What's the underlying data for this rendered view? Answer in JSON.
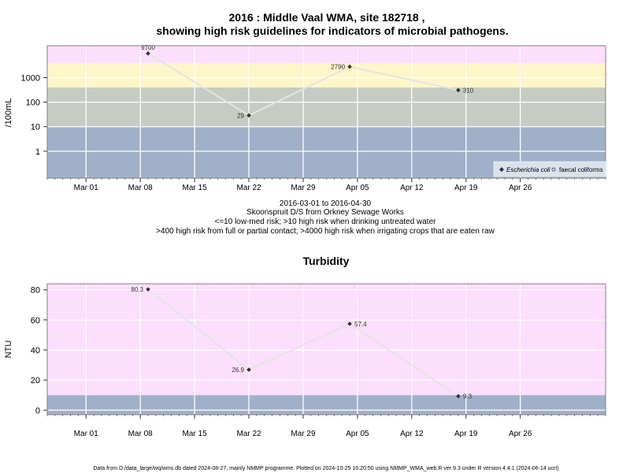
{
  "chart_data": [
    {
      "type": "line",
      "title_line1": "2016 : Middle Vaal WMA, site 182718 ,",
      "title_line2": "showing high risk guidelines for indicators of microbial pathogens.",
      "ylabel": "/100mL",
      "yscale": "log",
      "ylim": [
        0.08,
        20000
      ],
      "xlim": [
        "2016-02-25",
        "2016-05-07"
      ],
      "y_ticks": [
        1,
        10,
        100,
        1000
      ],
      "y_tick_labels": [
        "1",
        "10",
        "100",
        "1000"
      ],
      "x_ticks": [
        "2016-03-01",
        "2016-03-08",
        "2016-03-15",
        "2016-03-22",
        "2016-03-29",
        "2016-04-05",
        "2016-04-12",
        "2016-04-19",
        "2016-04-26"
      ],
      "x_tick_labels": [
        "Mar 01",
        "Mar 08",
        "Mar 15",
        "Mar 22",
        "Mar 29",
        "Apr 05",
        "Apr 12",
        "Apr 19",
        "Apr 26"
      ],
      "grid": true,
      "bands": [
        {
          "from": 0.08,
          "to": 10,
          "color": "#a0b0c8"
        },
        {
          "from": 10,
          "to": 400,
          "color": "#c6cbc4"
        },
        {
          "from": 400,
          "to": 4000,
          "color": "#fdf6c8"
        },
        {
          "from": 4000,
          "to": 20000,
          "color": "#fcdffc"
        }
      ],
      "series": [
        {
          "name": "Escherichia coli",
          "x": [
            "2016-03-09",
            "2016-03-22",
            "2016-04-04",
            "2016-04-18"
          ],
          "y": [
            9700,
            29,
            2790,
            310
          ],
          "labels": [
            "9700",
            "29",
            "2790",
            "310"
          ]
        }
      ],
      "legend": {
        "position": "bottom-right",
        "entries": [
          "Escherichia coli",
          "faecal coliforms"
        ]
      },
      "caption": [
        "2016-03-01 to 2016-04-30",
        "Skoonspruit D/S from Orkney Sewage Works",
        "<=10 low-med risk; >10 high risk when drinking untreated water",
        ">400 high risk from full or partial contact; >4000 high risk when irrigating crops that are eaten raw"
      ]
    },
    {
      "type": "line",
      "title": "Turbidity",
      "ylabel": "NTU",
      "ylim": [
        -3,
        84
      ],
      "xlim": [
        "2016-02-25",
        "2016-05-07"
      ],
      "y_ticks": [
        0,
        20,
        40,
        60,
        80
      ],
      "y_tick_labels": [
        "0",
        "20",
        "40",
        "60",
        "80"
      ],
      "x_ticks": [
        "2016-03-01",
        "2016-03-08",
        "2016-03-15",
        "2016-03-22",
        "2016-03-29",
        "2016-04-05",
        "2016-04-12",
        "2016-04-19",
        "2016-04-26"
      ],
      "x_tick_labels": [
        "Mar 01",
        "Mar 08",
        "Mar 15",
        "Mar 22",
        "Mar 29",
        "Apr 05",
        "Apr 12",
        "Apr 19",
        "Apr 26"
      ],
      "grid": true,
      "bands": [
        {
          "from": -3,
          "to": 10,
          "color": "#a0b0c8"
        },
        {
          "from": 10,
          "to": 84,
          "color": "#fcdffc"
        }
      ],
      "series": [
        {
          "x": [
            "2016-03-09",
            "2016-03-22",
            "2016-04-04",
            "2016-04-18"
          ],
          "y": [
            80.3,
            26.9,
            57.4,
            9.3
          ],
          "labels": [
            "80.3",
            "26.9",
            "57.4",
            "9.3"
          ]
        }
      ]
    }
  ],
  "footer": "Data from D:/data_large/wq/wms.db dated 2024-08-27, mainly NMMP programme. Plotted on 2024-10-25 16:20:50 using NMMP_WMA_web.R ver 9.3 under R version 4.4.1 (2024-06-14 ucrt)"
}
